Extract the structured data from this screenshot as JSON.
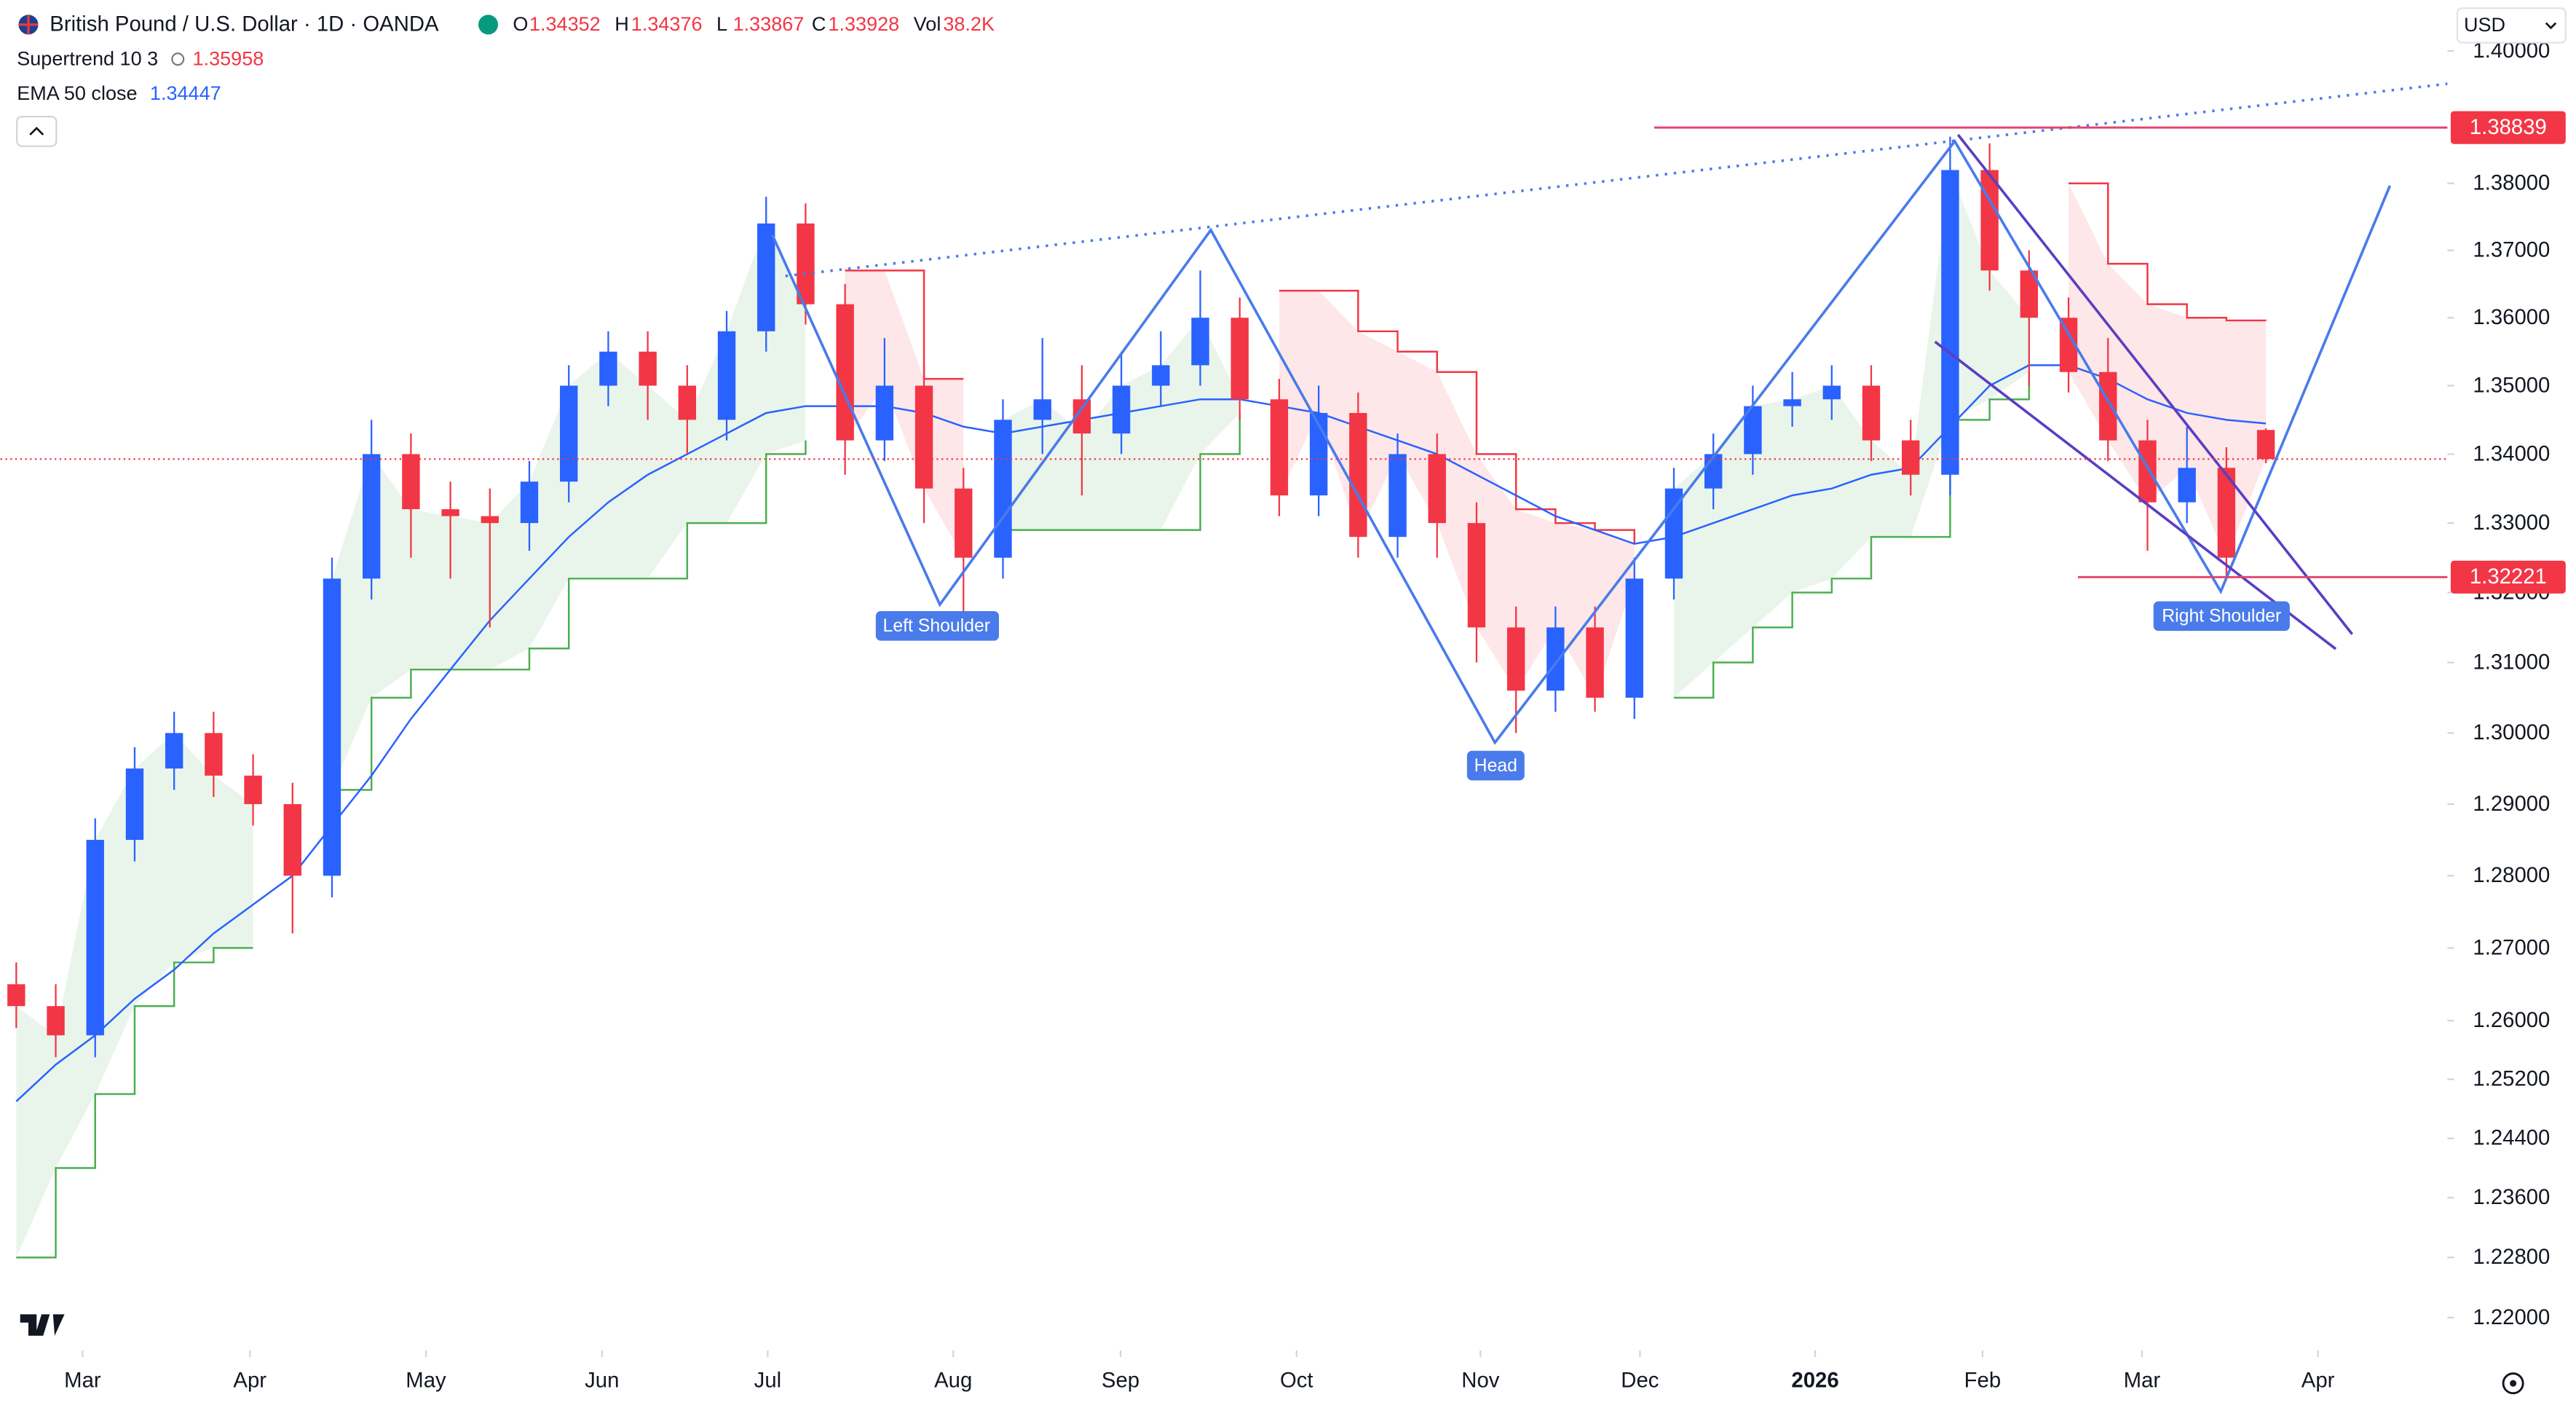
{
  "chart_data": {
    "type": "candlestick",
    "title": "British Pound / U.S. Dollar · 1D · OANDA",
    "ohlc_labels": [
      "O",
      "H",
      "L",
      "C"
    ],
    "volume_label": "Vol",
    "volume": "38.2K",
    "currency": "USD",
    "log_scale": true,
    "up_color": "#2962ff",
    "down_color": "#f23645",
    "x": [
      2,
      7,
      12,
      17,
      22,
      27,
      32,
      37,
      42,
      47,
      52,
      57,
      62,
      67,
      72,
      77,
      82,
      87,
      92,
      97,
      102,
      107,
      112,
      117,
      122,
      127,
      132,
      137,
      142,
      147,
      152,
      157,
      162,
      167,
      172,
      177,
      182,
      187,
      192,
      197,
      202,
      207,
      212,
      217,
      222,
      227,
      232,
      237,
      242,
      247,
      252,
      257,
      262,
      267,
      272,
      277,
      282,
      287
    ],
    "open": [
      1.265,
      1.262,
      1.258,
      1.285,
      1.295,
      1.3,
      1.294,
      1.29,
      1.28,
      1.322,
      1.34,
      1.332,
      1.331,
      1.33,
      1.336,
      1.35,
      1.355,
      1.35,
      1.345,
      1.358,
      1.374,
      1.362,
      1.342,
      1.35,
      1.335,
      1.325,
      1.345,
      1.348,
      1.343,
      1.35,
      1.353,
      1.36,
      1.348,
      1.334,
      1.346,
      1.328,
      1.34,
      1.33,
      1.315,
      1.306,
      1.315,
      1.305,
      1.322,
      1.335,
      1.34,
      1.347,
      1.348,
      1.35,
      1.342,
      1.337,
      1.382,
      1.367,
      1.36,
      1.352,
      1.342,
      1.333,
      1.338,
      1.34352
    ],
    "high": [
      1.268,
      1.265,
      1.288,
      1.298,
      1.303,
      1.303,
      1.297,
      1.293,
      1.325,
      1.345,
      1.343,
      1.336,
      1.335,
      1.339,
      1.353,
      1.358,
      1.358,
      1.353,
      1.361,
      1.378,
      1.377,
      1.365,
      1.357,
      1.353,
      1.338,
      1.348,
      1.357,
      1.353,
      1.355,
      1.358,
      1.367,
      1.363,
      1.351,
      1.35,
      1.349,
      1.343,
      1.343,
      1.333,
      1.318,
      1.318,
      1.318,
      1.325,
      1.338,
      1.343,
      1.35,
      1.352,
      1.353,
      1.353,
      1.345,
      1.387,
      1.386,
      1.37,
      1.363,
      1.357,
      1.345,
      1.344,
      1.341,
      1.34376
    ],
    "low": [
      1.259,
      1.255,
      1.255,
      1.282,
      1.292,
      1.291,
      1.287,
      1.272,
      1.277,
      1.319,
      1.325,
      1.322,
      1.315,
      1.326,
      1.333,
      1.347,
      1.345,
      1.34,
      1.342,
      1.355,
      1.359,
      1.337,
      1.339,
      1.33,
      1.317,
      1.322,
      1.34,
      1.334,
      1.34,
      1.347,
      1.35,
      1.345,
      1.331,
      1.331,
      1.325,
      1.325,
      1.325,
      1.31,
      1.3,
      1.303,
      1.303,
      1.302,
      1.319,
      1.332,
      1.337,
      1.344,
      1.345,
      1.339,
      1.334,
      1.334,
      1.364,
      1.35,
      1.349,
      1.339,
      1.326,
      1.33,
      1.322,
      1.33867
    ],
    "close": [
      1.262,
      1.258,
      1.285,
      1.295,
      1.3,
      1.294,
      1.29,
      1.28,
      1.322,
      1.34,
      1.332,
      1.331,
      1.33,
      1.336,
      1.35,
      1.355,
      1.35,
      1.345,
      1.358,
      1.374,
      1.362,
      1.342,
      1.35,
      1.335,
      1.325,
      1.345,
      1.348,
      1.343,
      1.35,
      1.353,
      1.36,
      1.348,
      1.334,
      1.346,
      1.328,
      1.34,
      1.33,
      1.315,
      1.306,
      1.315,
      1.305,
      1.322,
      1.335,
      1.34,
      1.347,
      1.348,
      1.35,
      1.342,
      1.337,
      1.382,
      1.367,
      1.36,
      1.352,
      1.342,
      1.333,
      1.338,
      1.325,
      1.33928
    ],
    "supertrend": {
      "name": "Supertrend 10 3",
      "up_color": "#4caf50",
      "down_color": "#f23645",
      "values": [
        1.228,
        1.24,
        1.25,
        1.262,
        1.268,
        1.27,
        1.27,
        1.312,
        1.292,
        1.305,
        1.309,
        1.309,
        1.309,
        1.312,
        1.322,
        1.322,
        1.322,
        1.33,
        1.33,
        1.34,
        1.342,
        1.367,
        1.367,
        1.351,
        1.351,
        1.329,
        1.329,
        1.329,
        1.329,
        1.329,
        1.34,
        1.346,
        1.364,
        1.364,
        1.358,
        1.355,
        1.352,
        1.34,
        1.332,
        1.33,
        1.329,
        1.327,
        1.305,
        1.31,
        1.315,
        1.32,
        1.322,
        1.328,
        1.328,
        1.345,
        1.348,
        1.352,
        1.38,
        1.368,
        1.362,
        1.36,
        1.3596,
        1.35958
      ]
    },
    "ema": {
      "name": "EMA 50 close",
      "color": "#2962ff",
      "values": [
        1.249,
        1.254,
        1.258,
        1.263,
        1.267,
        1.272,
        1.276,
        1.28,
        1.287,
        1.294,
        1.302,
        1.309,
        1.316,
        1.322,
        1.328,
        1.333,
        1.337,
        1.34,
        1.343,
        1.346,
        1.347,
        1.347,
        1.347,
        1.346,
        1.344,
        1.343,
        1.344,
        1.345,
        1.346,
        1.347,
        1.348,
        1.348,
        1.347,
        1.346,
        1.344,
        1.342,
        1.34,
        1.337,
        1.334,
        1.331,
        1.329,
        1.327,
        1.328,
        1.33,
        1.332,
        1.334,
        1.335,
        1.337,
        1.338,
        1.344,
        1.35,
        1.353,
        1.353,
        1.351,
        1.348,
        1.346,
        1.345,
        1.34447
      ]
    },
    "levels": [
      1.38839,
      1.32221
    ],
    "annotations": [
      "Left Shoulder",
      "Head",
      "Right Shoulder"
    ],
    "xlim": [
      0,
      310
    ],
    "xticks": [
      {
        "value": 10.4,
        "label": "Mar"
      },
      {
        "value": 31.6,
        "label": "Apr"
      },
      {
        "value": 53.9,
        "label": "May"
      },
      {
        "value": 76.2,
        "label": "Jun"
      },
      {
        "value": 97.2,
        "label": "Jul"
      },
      {
        "value": 120.7,
        "label": "Aug"
      },
      {
        "value": 141.9,
        "label": "Sep"
      },
      {
        "value": 164.2,
        "label": "Oct"
      },
      {
        "value": 187.5,
        "label": "Nov"
      },
      {
        "value": 207.7,
        "label": "Dec"
      },
      {
        "value": 229.9,
        "label": "2026"
      },
      {
        "value": 251.1,
        "label": "Feb"
      },
      {
        "value": 271.3,
        "label": "Mar"
      },
      {
        "value": 293.6,
        "label": "Apr"
      }
    ],
    "ylim": [
      1.22,
      1.4
    ],
    "yticks": [
      {
        "value": 1.4,
        "label": "1.40000"
      },
      {
        "value": 1.38,
        "label": "1.38000"
      },
      {
        "value": 1.37,
        "label": "1.37000"
      },
      {
        "value": 1.36,
        "label": "1.36000"
      },
      {
        "value": 1.35,
        "label": "1.35000"
      },
      {
        "value": 1.34,
        "label": "1.34000"
      },
      {
        "value": 1.33,
        "label": "1.33000"
      },
      {
        "value": 1.32,
        "label": "1.32000"
      },
      {
        "value": 1.31,
        "label": "1.31000"
      },
      {
        "value": 1.3,
        "label": "1.30000"
      },
      {
        "value": 1.29,
        "label": "1.29000"
      },
      {
        "value": 1.28,
        "label": "1.28000"
      },
      {
        "value": 1.27,
        "label": "1.27000"
      },
      {
        "value": 1.26,
        "label": "1.26000"
      },
      {
        "value": 1.252,
        "label": "1.25200"
      },
      {
        "value": 1.244,
        "label": "1.24400"
      },
      {
        "value": 1.236,
        "label": "1.23600"
      },
      {
        "value": 1.228,
        "label": "1.22800"
      },
      {
        "value": 1.22,
        "label": "1.22000"
      }
    ]
  }
}
